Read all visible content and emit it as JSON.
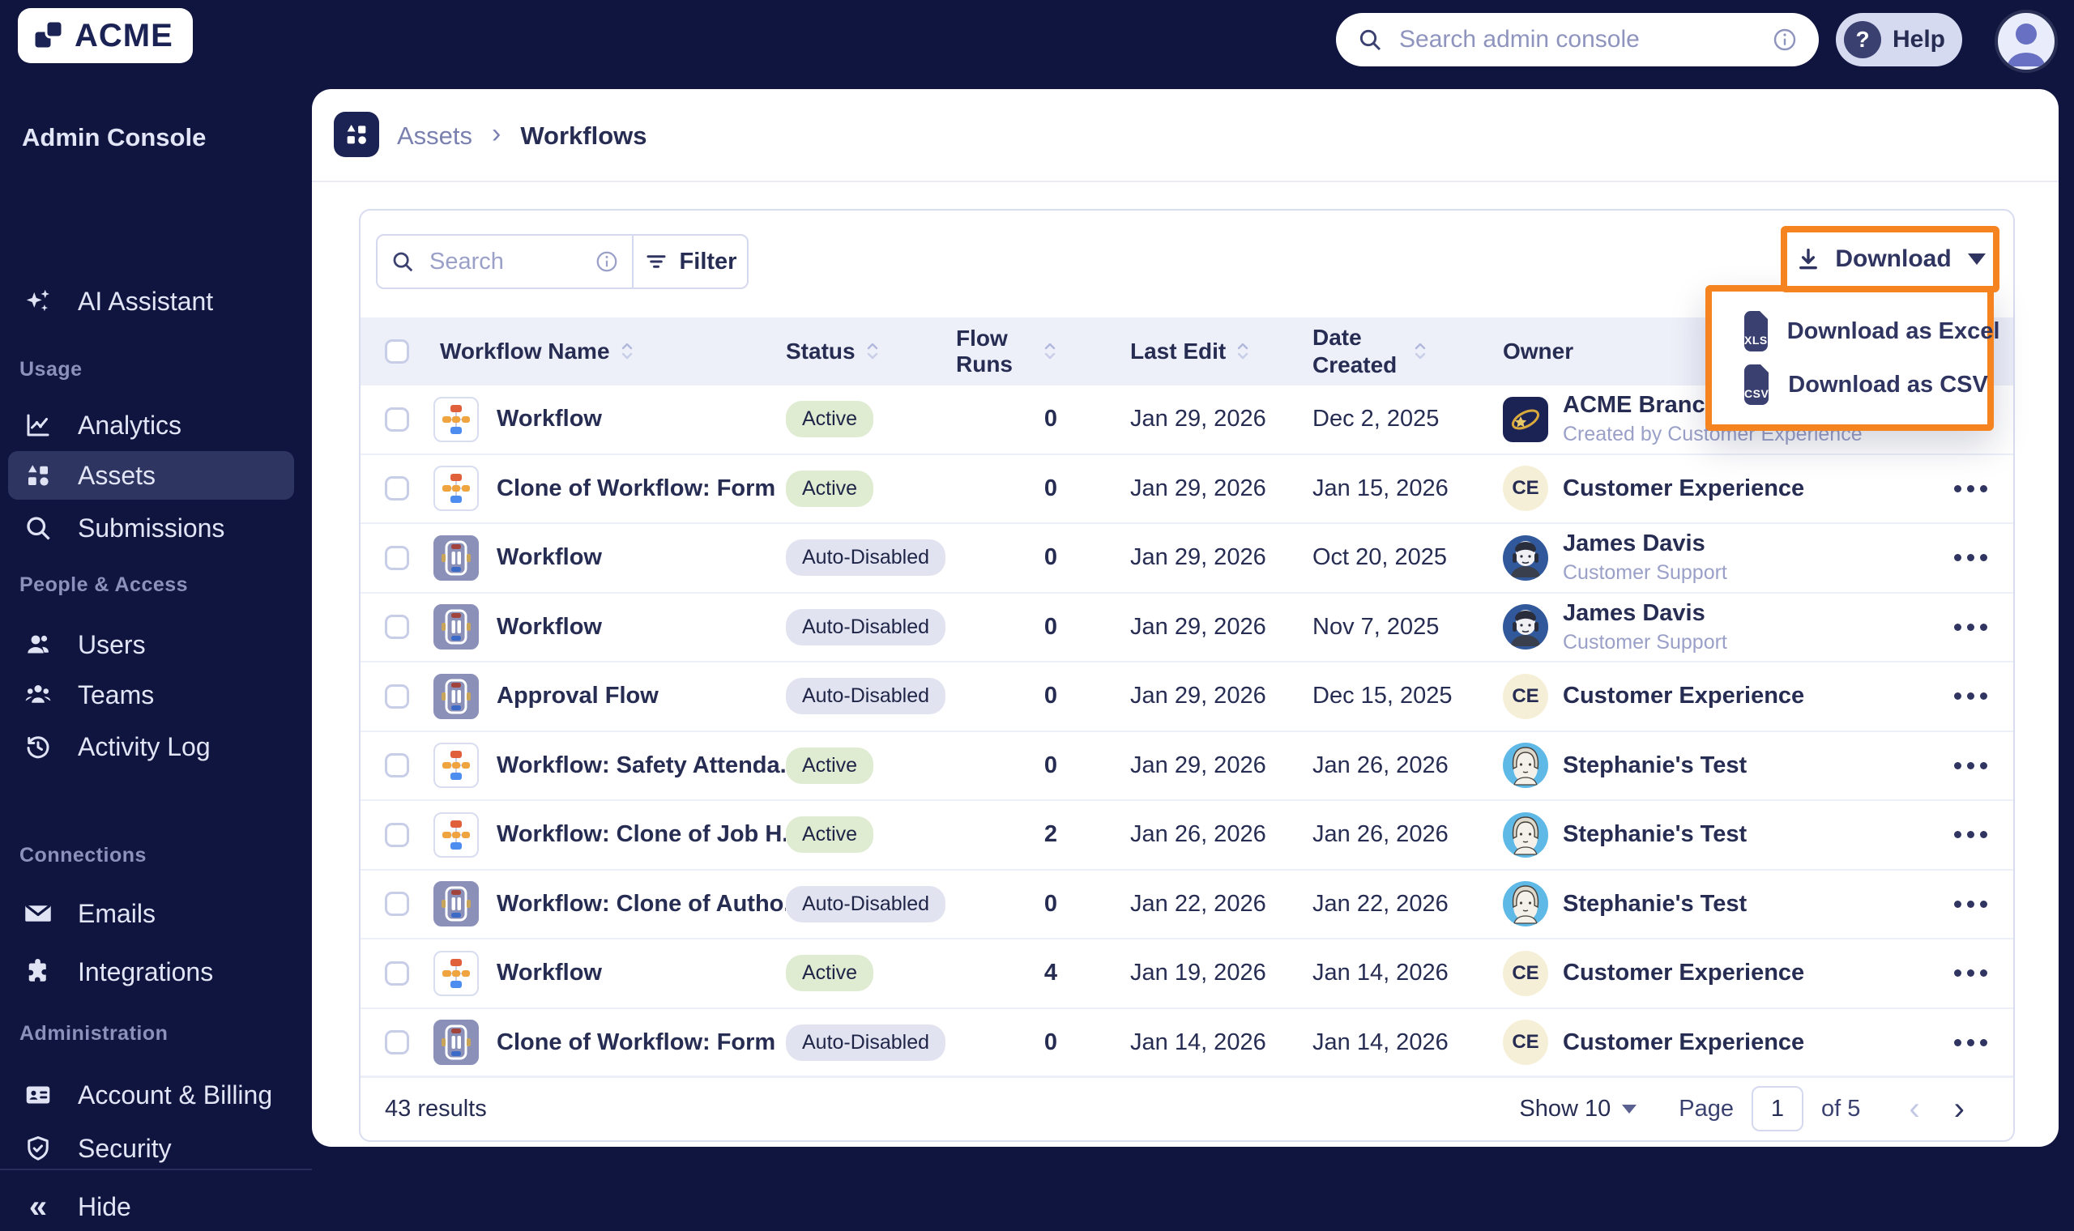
{
  "colors": {
    "navy_bg": "#101540",
    "accent_orange": "#F5831F",
    "badge_active_bg": "#DFECD2",
    "badge_disabled_bg": "#E2E3F0",
    "sidebar_active_bg": "#2E3560"
  },
  "logo": {
    "text": "ACME"
  },
  "topbar": {
    "search_placeholder": "Search admin console",
    "help_label": "Help"
  },
  "sidebar": {
    "title": "Admin Console",
    "assistant": {
      "label": "AI Assistant",
      "icon": "sparkles-icon"
    },
    "sections": [
      {
        "label": "Usage",
        "items": [
          {
            "label": "Analytics",
            "icon": "analytics-icon",
            "active": false
          },
          {
            "label": "Assets",
            "icon": "assets-icon",
            "active": true
          },
          {
            "label": "Submissions",
            "icon": "search-icon",
            "active": false
          }
        ]
      },
      {
        "label": "People & Access",
        "items": [
          {
            "label": "Users",
            "icon": "user-icon",
            "active": false
          },
          {
            "label": "Teams",
            "icon": "team-icon",
            "active": false
          },
          {
            "label": "Activity Log",
            "icon": "activity-log-icon",
            "active": false
          }
        ]
      },
      {
        "label": "Connections",
        "items": [
          {
            "label": "Emails",
            "icon": "mail-icon",
            "active": false
          },
          {
            "label": "Integrations",
            "icon": "puzzle-icon",
            "active": false
          }
        ]
      },
      {
        "label": "Administration",
        "items": [
          {
            "label": "Account & Billing",
            "icon": "id-card-icon",
            "active": false
          },
          {
            "label": "Security",
            "icon": "shield-icon",
            "active": false
          }
        ]
      }
    ],
    "hide_label": "Hide"
  },
  "breadcrumb": {
    "parent": "Assets",
    "current": "Workflows"
  },
  "toolbar": {
    "search_placeholder": "Search",
    "filter_label": "Filter",
    "download_label": "Download"
  },
  "download_menu": {
    "items": [
      {
        "label": "Download as Excel",
        "file_type": "XLS"
      },
      {
        "label": "Download as CSV",
        "file_type": "CSV"
      }
    ]
  },
  "table": {
    "columns": [
      "Workflow Name",
      "Status",
      "Flow Runs",
      "Last Edit",
      "Date Created",
      "Owner"
    ],
    "rows": [
      {
        "name": "Workflow",
        "icon": "flow",
        "status": "Active",
        "status_variant": "active",
        "runs": 0,
        "last_edit": "Jan 29, 2026",
        "date_created": "Dec 2, 2025",
        "owner": {
          "name": "ACME Branch C",
          "subtitle": "Created by Customer Experience",
          "avatar": "acme"
        }
      },
      {
        "name": "Clone of Workflow: Form",
        "icon": "flow",
        "status": "Active",
        "status_variant": "active",
        "runs": 0,
        "last_edit": "Jan 29, 2026",
        "date_created": "Jan 15, 2026",
        "owner": {
          "name": "Customer Experience",
          "subtitle": "",
          "avatar": "ce"
        }
      },
      {
        "name": "Workflow",
        "icon": "flow-paused",
        "status": "Auto-Disabled",
        "status_variant": "disabled",
        "runs": 0,
        "last_edit": "Jan 29, 2026",
        "date_created": "Oct 20, 2025",
        "owner": {
          "name": "James Davis",
          "subtitle": "Customer Support",
          "avatar": "james"
        }
      },
      {
        "name": "Workflow",
        "icon": "flow-paused",
        "status": "Auto-Disabled",
        "status_variant": "disabled",
        "runs": 0,
        "last_edit": "Jan 29, 2026",
        "date_created": "Nov 7, 2025",
        "owner": {
          "name": "James Davis",
          "subtitle": "Customer Support",
          "avatar": "james"
        }
      },
      {
        "name": "Approval Flow",
        "icon": "flow-paused",
        "status": "Auto-Disabled",
        "status_variant": "disabled",
        "runs": 0,
        "last_edit": "Jan 29, 2026",
        "date_created": "Dec 15, 2025",
        "owner": {
          "name": "Customer Experience",
          "subtitle": "",
          "avatar": "ce"
        }
      },
      {
        "name": "Workflow: Safety Attenda...",
        "icon": "flow",
        "status": "Active",
        "status_variant": "active",
        "runs": 0,
        "last_edit": "Jan 29, 2026",
        "date_created": "Jan 26, 2026",
        "owner": {
          "name": "Stephanie's Test",
          "subtitle": "",
          "avatar": "stephanie"
        }
      },
      {
        "name": "Workflow: Clone of Job H...",
        "icon": "flow",
        "status": "Active",
        "status_variant": "active",
        "runs": 2,
        "last_edit": "Jan 26, 2026",
        "date_created": "Jan 26, 2026",
        "owner": {
          "name": "Stephanie's Test",
          "subtitle": "",
          "avatar": "stephanie"
        }
      },
      {
        "name": "Workflow: Clone of Autho...",
        "icon": "flow-paused",
        "status": "Auto-Disabled",
        "status_variant": "disabled",
        "runs": 0,
        "last_edit": "Jan 22, 2026",
        "date_created": "Jan 22, 2026",
        "owner": {
          "name": "Stephanie's Test",
          "subtitle": "",
          "avatar": "stephanie"
        }
      },
      {
        "name": "Workflow",
        "icon": "flow",
        "status": "Active",
        "status_variant": "active",
        "runs": 4,
        "last_edit": "Jan 19, 2026",
        "date_created": "Jan 14, 2026",
        "owner": {
          "name": "Customer Experience",
          "subtitle": "",
          "avatar": "ce"
        }
      },
      {
        "name": "Clone of Workflow: Form",
        "icon": "flow-paused",
        "status": "Auto-Disabled",
        "status_variant": "disabled",
        "runs": 0,
        "last_edit": "Jan 14, 2026",
        "date_created": "Jan 14, 2026",
        "owner": {
          "name": "Customer Experience",
          "subtitle": "",
          "avatar": "ce"
        }
      }
    ]
  },
  "footer": {
    "results": "43 results",
    "show_label": "Show 10",
    "page_label": "Page",
    "page_value": "1",
    "of_label": "of 5"
  }
}
